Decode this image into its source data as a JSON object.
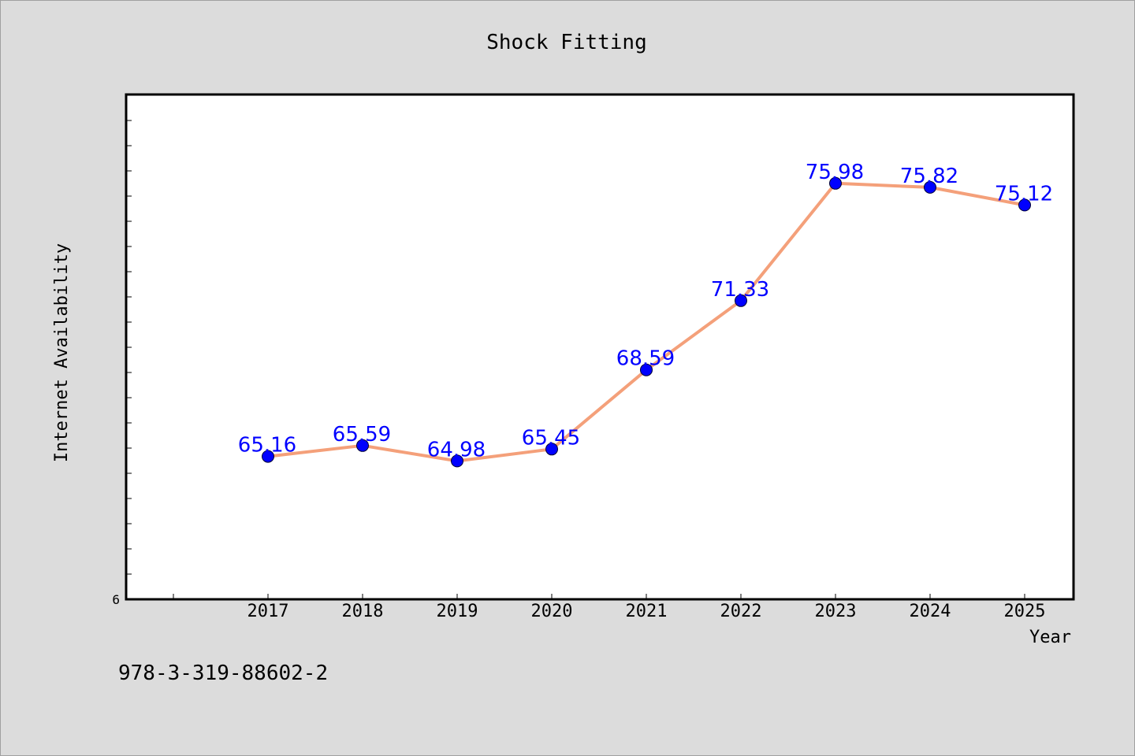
{
  "chart_data": {
    "type": "line",
    "title": "Shock Fitting",
    "xlabel": "Year",
    "ylabel": "Internet Availability",
    "categories": [
      "2017",
      "2018",
      "2019",
      "2020",
      "2021",
      "2022",
      "2023",
      "2024",
      "2025"
    ],
    "series": [
      {
        "values": [
          65.16,
          65.59,
          64.98,
          65.45,
          68.59,
          71.33,
          75.98,
          75.82,
          75.12
        ],
        "line_color": "#f4a07a",
        "marker_color": "#0000ff",
        "label_color": "#0000ff"
      }
    ],
    "ylim": [
      59.5,
      79.5
    ],
    "y_tick_labels": [
      "6"
    ],
    "data_labels": [
      "65.16",
      "65.59",
      "64.98",
      "65.45",
      "68.59",
      "71.33",
      "75.98",
      "75.82",
      "75.12"
    ],
    "grid": false,
    "legend": "none"
  },
  "footer": {
    "text": "978-3-319-88602-2"
  },
  "colors": {
    "background": "#dcdcdc",
    "plot_background": "#ffffff",
    "frame": "#000000"
  }
}
